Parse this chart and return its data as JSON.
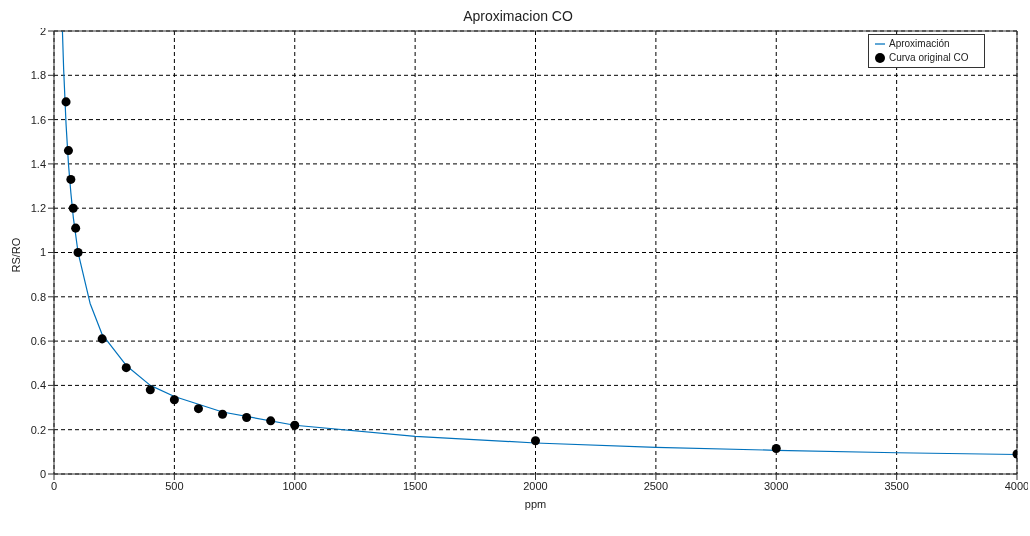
{
  "chart_data": {
    "type": "line",
    "title": "Aproximacion CO",
    "xlabel": "ppm",
    "ylabel": "RS/RO",
    "xlim": [
      0,
      4000
    ],
    "xticks": [
      0,
      500,
      1000,
      1500,
      2000,
      2500,
      3000,
      3500,
      4000
    ],
    "ylim": [
      0,
      2
    ],
    "yticks": [
      0,
      0.2,
      0.4,
      0.6,
      0.8,
      1,
      1.2,
      1.4,
      1.6,
      1.8,
      2
    ],
    "grid": true,
    "legend": "top right",
    "series": [
      {
        "name": "Aproximación",
        "color": "#0072bd",
        "marker": "none",
        "line_style": "solid",
        "x": [
          35,
          40,
          50,
          60,
          70,
          80,
          100,
          150,
          200,
          300,
          400,
          500,
          700,
          1000,
          1500,
          2000,
          2500,
          3000,
          3500,
          4000
        ],
        "values": [
          2.0,
          1.83,
          1.58,
          1.4,
          1.27,
          1.16,
          1.0,
          0.77,
          0.63,
          0.49,
          0.4,
          0.35,
          0.28,
          0.22,
          0.17,
          0.14,
          0.12,
          0.107,
          0.096,
          0.088
        ]
      },
      {
        "name": "Curva original CO",
        "type": "scatter",
        "color": "#000000",
        "marker": "circle",
        "x": [
          50,
          60,
          70,
          80,
          90,
          100,
          200,
          300,
          400,
          500,
          600,
          700,
          800,
          900,
          1000,
          2000,
          3000,
          4000
        ],
        "values": [
          1.68,
          1.46,
          1.33,
          1.2,
          1.11,
          1.0,
          0.61,
          0.48,
          0.38,
          0.335,
          0.295,
          0.27,
          0.255,
          0.24,
          0.22,
          0.15,
          0.115,
          0.09
        ]
      }
    ]
  }
}
